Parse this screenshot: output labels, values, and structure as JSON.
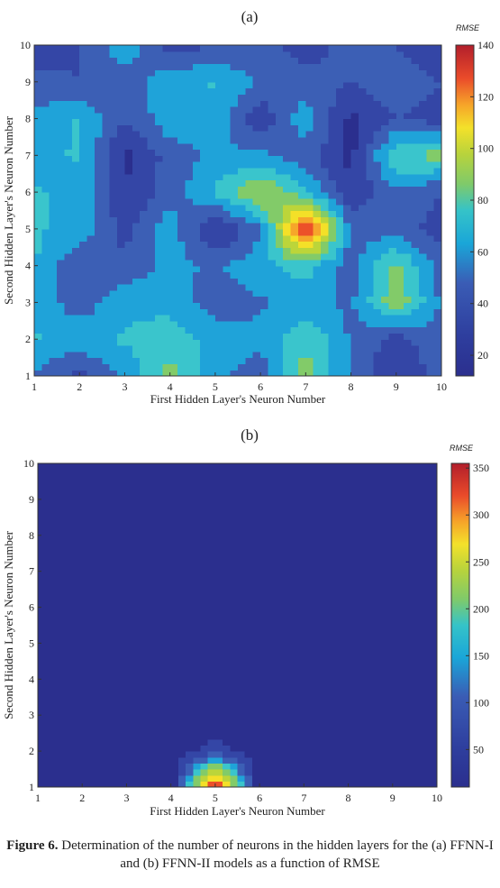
{
  "caption": {
    "label": "Figure 6.",
    "text": "Determination of the number of neurons in the hidden layers for the (a) FFNN-I and (b) FFNN-II models as a function of RMSE"
  },
  "chart_data": [
    {
      "type": "heatmap",
      "panel_label": "(a)",
      "xlabel": "First Hidden Layer's Neuron Number",
      "ylabel": "Second Hidden Layer's Neuron Number",
      "colorbar_title": "RMSE",
      "x": [
        1,
        2,
        3,
        4,
        5,
        6,
        7,
        8,
        9,
        10
      ],
      "y": [
        1,
        2,
        3,
        4,
        5,
        6,
        7,
        8,
        9,
        10
      ],
      "xticks": [
        "1",
        "2",
        "3",
        "4",
        "5",
        "6",
        "7",
        "8",
        "9",
        "10"
      ],
      "yticks": [
        "1",
        "2",
        "3",
        "4",
        "5",
        "6",
        "7",
        "8",
        "9",
        "10"
      ],
      "colorbar_range": [
        12,
        140
      ],
      "colorbar_ticks": [
        "20",
        "40",
        "60",
        "80",
        "100",
        "120",
        "140"
      ],
      "colorbar_tick_values": [
        20,
        40,
        60,
        80,
        100,
        120,
        140
      ],
      "z_rows_y1_to_y10": [
        [
          45,
          30,
          50,
          75,
          50,
          40,
          75,
          45,
          25,
          40
        ],
        [
          60,
          55,
          60,
          65,
          55,
          50,
          70,
          45,
          30,
          45
        ],
        [
          55,
          40,
          55,
          55,
          40,
          45,
          50,
          45,
          80,
          45
        ],
        [
          60,
          35,
          40,
          50,
          45,
          55,
          65,
          40,
          75,
          40
        ],
        [
          60,
          55,
          30,
          55,
          20,
          45,
          138,
          45,
          40,
          30
        ],
        [
          60,
          55,
          25,
          40,
          60,
          85,
          60,
          25,
          45,
          35
        ],
        [
          55,
          60,
          20,
          40,
          50,
          50,
          40,
          20,
          70,
          75
        ],
        [
          50,
          60,
          35,
          55,
          55,
          25,
          55,
          20,
          35,
          30
        ],
        [
          40,
          35,
          40,
          55,
          60,
          45,
          40,
          35,
          45,
          35
        ],
        [
          25,
          35,
          55,
          30,
          35,
          40,
          30,
          40,
          35,
          25
        ]
      ]
    },
    {
      "type": "heatmap",
      "panel_label": "(b)",
      "xlabel": "First Hidden Layer's Neuron Number",
      "ylabel": "Second Hidden Layer's Neuron Number",
      "colorbar_title": "RMSE",
      "x": [
        1,
        2,
        3,
        4,
        5,
        6,
        7,
        8,
        9,
        10
      ],
      "y": [
        1,
        2,
        3,
        4,
        5,
        6,
        7,
        8,
        9,
        10
      ],
      "xticks": [
        "1",
        "2",
        "3",
        "4",
        "5",
        "6",
        "7",
        "8",
        "9",
        "10"
      ],
      "yticks": [
        "1",
        "2",
        "3",
        "4",
        "5",
        "6",
        "7",
        "8",
        "9",
        "10"
      ],
      "colorbar_range": [
        10,
        355
      ],
      "colorbar_ticks": [
        "50",
        "100",
        "150",
        "200",
        "250",
        "300",
        "350"
      ],
      "colorbar_tick_values": [
        50,
        100,
        150,
        200,
        250,
        300,
        350
      ],
      "z_rows_y1_to_y10": [
        [
          12,
          12,
          12,
          12,
          352,
          12,
          12,
          12,
          12,
          12
        ],
        [
          12,
          12,
          12,
          12,
          60,
          12,
          12,
          12,
          12,
          12
        ],
        [
          12,
          12,
          12,
          12,
          12,
          12,
          12,
          12,
          12,
          12
        ],
        [
          40,
          12,
          12,
          12,
          12,
          12,
          12,
          12,
          12,
          12
        ],
        [
          12,
          45,
          12,
          12,
          12,
          12,
          45,
          12,
          12,
          12
        ],
        [
          40,
          12,
          12,
          12,
          12,
          12,
          12,
          12,
          12,
          12
        ],
        [
          40,
          12,
          12,
          12,
          12,
          12,
          12,
          12,
          12,
          12
        ],
        [
          12,
          12,
          12,
          12,
          45,
          12,
          12,
          12,
          12,
          12
        ],
        [
          12,
          12,
          12,
          12,
          12,
          12,
          12,
          12,
          12,
          12
        ],
        [
          30,
          12,
          12,
          12,
          12,
          12,
          12,
          12,
          12,
          12
        ]
      ]
    }
  ]
}
